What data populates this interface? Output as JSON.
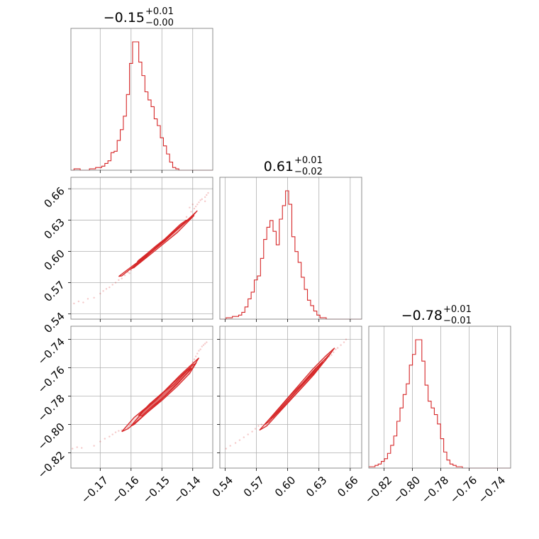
{
  "chart_data": {
    "type": "corner",
    "color": "#d62728",
    "grid": true,
    "parameters": [
      {
        "range": [
          -0.1795,
          -0.1335
        ],
        "ticks": [
          -0.17,
          -0.16,
          -0.15,
          -0.14
        ],
        "tick_labels": [
          "−0.17",
          "−0.16",
          "−0.15",
          "−0.14"
        ],
        "title": {
          "value": "−0.15",
          "plus": "+0.01",
          "minus": "−0.00"
        },
        "histogram": {
          "bin_start": -0.1795,
          "bin_width": 0.001,
          "counts": [
            0,
            1,
            1,
            0,
            0,
            0,
            1,
            1,
            2,
            2,
            3,
            5,
            7,
            13,
            14,
            22,
            30,
            40,
            56,
            79,
            95,
            95,
            80,
            70,
            58,
            52,
            47,
            38,
            33,
            24,
            18,
            12,
            6,
            2,
            1,
            0,
            0,
            0,
            0,
            0,
            0,
            0,
            0,
            0,
            0,
            0
          ]
        }
      },
      {
        "range": [
          0.535,
          0.671
        ],
        "ticks": [
          0.54,
          0.57,
          0.6,
          0.63,
          0.66
        ],
        "tick_labels": [
          "0.54",
          "0.57",
          "0.60",
          "0.63",
          "0.66"
        ],
        "title": {
          "value": "0.61",
          "plus": "+0.01",
          "minus": "−0.02"
        },
        "histogram": {
          "bin_start": 0.535,
          "bin_width": 0.003,
          "counts": [
            0,
            0,
            1,
            1,
            2,
            2,
            3,
            5,
            9,
            15,
            20,
            29,
            32,
            45,
            59,
            68,
            73,
            65,
            55,
            74,
            84,
            95,
            85,
            61,
            50,
            42,
            31,
            22,
            14,
            10,
            6,
            3,
            1,
            1,
            0,
            0,
            0,
            0,
            0,
            0,
            0,
            0,
            0,
            0,
            0,
            0
          ]
        }
      },
      {
        "range": [
          -0.8307,
          -0.7307
        ],
        "ticks": [
          -0.82,
          -0.8,
          -0.78,
          -0.76,
          -0.74
        ],
        "tick_labels": [
          "−0.82",
          "−0.80",
          "−0.78",
          "−0.76",
          "−0.74"
        ],
        "title": {
          "value": "−0.78",
          "plus": "+0.01",
          "minus": "−0.01"
        },
        "histogram": {
          "bin_start": -0.8307,
          "bin_width": 0.0022,
          "counts": [
            1,
            1,
            2,
            3,
            5,
            7,
            11,
            17,
            24,
            35,
            45,
            55,
            63,
            77,
            85,
            96,
            96,
            80,
            62,
            50,
            45,
            40,
            33,
            22,
            12,
            6,
            3,
            2,
            1,
            1,
            0,
            0,
            0,
            0,
            0,
            0,
            0,
            0,
            0,
            0,
            0,
            0,
            0,
            0,
            0,
            0
          ]
        }
      }
    ],
    "pairs": [
      {
        "row": 1,
        "col": 0,
        "contours": [
          {
            "level": "1sigma",
            "points": [
              [
                -0.1575,
                0.5915
              ],
              [
                -0.155,
                0.5975
              ],
              [
                -0.152,
                0.605
              ],
              [
                -0.149,
                0.612
              ],
              [
                -0.144,
                0.626
              ],
              [
                -0.142,
                0.63
              ],
              [
                -0.1425,
                0.628
              ],
              [
                -0.146,
                0.619
              ],
              [
                -0.15,
                0.609
              ],
              [
                -0.153,
                0.601
              ],
              [
                -0.156,
                0.594
              ],
              [
                -0.158,
                0.59
              ]
            ]
          },
          {
            "level": "2sigma",
            "points": [
              [
                -0.1595,
                0.584
              ],
              [
                -0.156,
                0.5925
              ],
              [
                -0.152,
                0.603
              ],
              [
                -0.148,
                0.613
              ],
              [
                -0.143,
                0.626
              ],
              [
                -0.14,
                0.6335
              ],
              [
                -0.1395,
                0.6345
              ],
              [
                -0.141,
                0.63
              ],
              [
                -0.145,
                0.618
              ],
              [
                -0.15,
                0.606
              ],
              [
                -0.155,
                0.594
              ],
              [
                -0.159,
                0.5845
              ],
              [
                -0.1605,
                0.5825
              ]
            ]
          },
          {
            "level": "outer",
            "points": [
              [
                -0.164,
                0.576
              ],
              [
                -0.16,
                0.585
              ],
              [
                -0.155,
                0.596
              ],
              [
                -0.15,
                0.609
              ],
              [
                -0.145,
                0.622
              ],
              [
                -0.141,
                0.632
              ],
              [
                -0.1385,
                0.639
              ],
              [
                -0.14,
                0.634
              ],
              [
                -0.144,
                0.624
              ],
              [
                -0.149,
                0.61
              ],
              [
                -0.154,
                0.598
              ],
              [
                -0.159,
                0.586
              ],
              [
                -0.163,
                0.5765
              ]
            ]
          }
        ],
        "scatter": [
          [
            -0.1785,
            0.55
          ],
          [
            -0.177,
            0.552
          ],
          [
            -0.1755,
            0.551
          ],
          [
            -0.174,
            0.5545
          ],
          [
            -0.172,
            0.5555
          ],
          [
            -0.17,
            0.5595
          ],
          [
            -0.169,
            0.562
          ],
          [
            -0.168,
            0.564
          ],
          [
            -0.167,
            0.5655
          ],
          [
            -0.166,
            0.568
          ],
          [
            -0.165,
            0.57
          ],
          [
            -0.164,
            0.5725
          ],
          [
            -0.163,
            0.574
          ],
          [
            -0.162,
            0.577
          ],
          [
            -0.161,
            0.58
          ],
          [
            -0.1605,
            0.579
          ],
          [
            -0.16,
            0.582
          ],
          [
            -0.159,
            0.5845
          ],
          [
            -0.142,
            0.633
          ],
          [
            -0.1405,
            0.638
          ],
          [
            -0.1395,
            0.641
          ],
          [
            -0.139,
            0.643
          ],
          [
            -0.1385,
            0.645
          ],
          [
            -0.138,
            0.647
          ],
          [
            -0.1375,
            0.649
          ],
          [
            -0.137,
            0.65
          ],
          [
            -0.136,
            0.652
          ],
          [
            -0.1355,
            0.654
          ],
          [
            -0.135,
            0.656
          ],
          [
            -0.14,
            0.645
          ],
          [
            -0.141,
            0.642
          ],
          [
            -0.136,
            0.648
          ]
        ]
      },
      {
        "row": 2,
        "col": 0,
        "contours": [
          {
            "level": "1sigma",
            "points": [
              [
                -0.1575,
                -0.7935
              ],
              [
                -0.154,
                -0.7855
              ],
              [
                -0.15,
                -0.778
              ],
              [
                -0.146,
                -0.7715
              ],
              [
                -0.142,
                -0.7625
              ],
              [
                -0.1405,
                -0.76
              ],
              [
                -0.1415,
                -0.763
              ],
              [
                -0.145,
                -0.7715
              ],
              [
                -0.149,
                -0.78
              ],
              [
                -0.153,
                -0.787
              ],
              [
                -0.1565,
                -0.794
              ]
            ]
          },
          {
            "level": "2sigma",
            "points": [
              [
                -0.16,
                -0.801
              ],
              [
                -0.156,
                -0.7905
              ],
              [
                -0.152,
                -0.783
              ],
              [
                -0.148,
                -0.774
              ],
              [
                -0.144,
                -0.766
              ],
              [
                -0.14,
                -0.758
              ],
              [
                -0.139,
                -0.757
              ],
              [
                -0.141,
                -0.764
              ],
              [
                -0.145,
                -0.773
              ],
              [
                -0.15,
                -0.783
              ],
              [
                -0.155,
                -0.792
              ],
              [
                -0.159,
                -0.8
              ]
            ]
          },
          {
            "level": "outer",
            "points": [
              [
                -0.163,
                -0.805
              ],
              [
                -0.159,
                -0.795
              ],
              [
                -0.154,
                -0.786
              ],
              [
                -0.149,
                -0.776
              ],
              [
                -0.144,
                -0.765
              ],
              [
                -0.1395,
                -0.756
              ],
              [
                -0.138,
                -0.753
              ],
              [
                -0.14,
                -0.76
              ],
              [
                -0.1445,
                -0.77
              ],
              [
                -0.15,
                -0.782
              ],
              [
                -0.1555,
                -0.793
              ],
              [
                -0.161,
                -0.803
              ]
            ]
          }
        ],
        "scatter": [
          [
            -0.179,
            -0.817
          ],
          [
            -0.1775,
            -0.816
          ],
          [
            -0.176,
            -0.8165
          ],
          [
            -0.172,
            -0.815
          ],
          [
            -0.17,
            -0.812
          ],
          [
            -0.1685,
            -0.81
          ],
          [
            -0.167,
            -0.8085
          ],
          [
            -0.166,
            -0.807
          ],
          [
            -0.165,
            -0.8055
          ],
          [
            -0.164,
            -0.8045
          ],
          [
            -0.163,
            -0.804
          ],
          [
            -0.162,
            -0.803
          ],
          [
            -0.161,
            -0.802
          ],
          [
            -0.1605,
            -0.8005
          ],
          [
            -0.14,
            -0.756
          ],
          [
            -0.1395,
            -0.754
          ],
          [
            -0.139,
            -0.752
          ],
          [
            -0.1385,
            -0.75
          ],
          [
            -0.138,
            -0.748
          ],
          [
            -0.1375,
            -0.747
          ],
          [
            -0.137,
            -0.745
          ],
          [
            -0.1365,
            -0.744
          ],
          [
            -0.136,
            -0.743
          ],
          [
            -0.1355,
            -0.742
          ],
          [
            -0.141,
            -0.759
          ]
        ]
      },
      {
        "row": 2,
        "col": 1,
        "contours": [
          {
            "level": "1sigma",
            "points": [
              [
                0.584,
                -0.796
              ],
              [
                0.595,
                -0.787
              ],
              [
                0.605,
                -0.779
              ],
              [
                0.615,
                -0.771
              ],
              [
                0.628,
                -0.76
              ],
              [
                0.634,
                -0.756
              ],
              [
                0.63,
                -0.76
              ],
              [
                0.62,
                -0.769
              ],
              [
                0.61,
                -0.777
              ],
              [
                0.598,
                -0.786
              ],
              [
                0.586,
                -0.795
              ]
            ]
          },
          {
            "level": "2sigma",
            "points": [
              [
                0.578,
                -0.8
              ],
              [
                0.59,
                -0.79
              ],
              [
                0.602,
                -0.78
              ],
              [
                0.614,
                -0.771
              ],
              [
                0.626,
                -0.761
              ],
              [
                0.637,
                -0.753
              ],
              [
                0.642,
                -0.749
              ],
              [
                0.636,
                -0.755
              ],
              [
                0.622,
                -0.766
              ],
              [
                0.608,
                -0.777
              ],
              [
                0.594,
                -0.788
              ],
              [
                0.582,
                -0.798
              ]
            ]
          },
          {
            "level": "outer",
            "points": [
              [
                0.573,
                -0.804
              ],
              [
                0.585,
                -0.794
              ],
              [
                0.598,
                -0.783
              ],
              [
                0.611,
                -0.772
              ],
              [
                0.624,
                -0.761
              ],
              [
                0.636,
                -0.752
              ],
              [
                0.645,
                -0.746
              ],
              [
                0.638,
                -0.753
              ],
              [
                0.625,
                -0.765
              ],
              [
                0.61,
                -0.777
              ],
              [
                0.595,
                -0.789
              ],
              [
                0.58,
                -0.801
              ]
            ]
          }
        ],
        "scatter": [
          [
            0.541,
            -0.817
          ],
          [
            0.545,
            -0.815
          ],
          [
            0.55,
            -0.813
          ],
          [
            0.554,
            -0.811
          ],
          [
            0.558,
            -0.809
          ],
          [
            0.562,
            -0.807
          ],
          [
            0.566,
            -0.805
          ],
          [
            0.569,
            -0.803
          ],
          [
            0.572,
            -0.801
          ],
          [
            0.575,
            -0.8
          ],
          [
            0.64,
            -0.752
          ],
          [
            0.644,
            -0.749
          ],
          [
            0.648,
            -0.746
          ],
          [
            0.651,
            -0.744
          ],
          [
            0.654,
            -0.742
          ],
          [
            0.656,
            -0.74
          ],
          [
            0.642,
            -0.751
          ],
          [
            0.646,
            -0.747
          ]
        ]
      }
    ]
  }
}
